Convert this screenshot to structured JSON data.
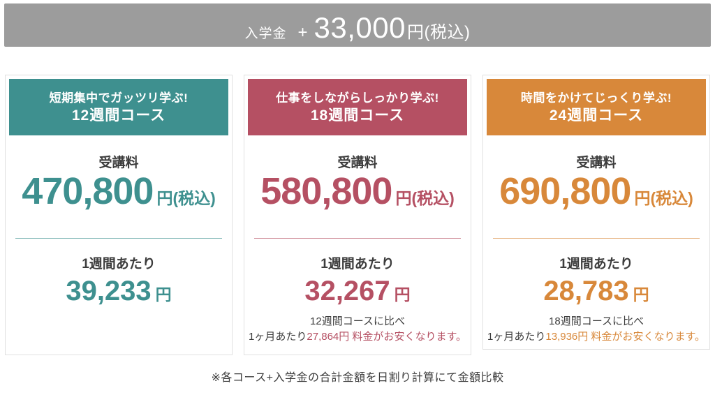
{
  "banner": {
    "label": "入学金",
    "plus": "+",
    "amount": "33,000",
    "unit": "円(税込)"
  },
  "cards": [
    {
      "theme_color": "#3e908f",
      "tagline": "短期集中でガッツリ学ぶ!",
      "course_name": "12週間コース",
      "tuition_label": "受講料",
      "tuition_amount": "470,800",
      "tuition_unit": "円(税込)",
      "per_week_label": "1週間あたり",
      "per_week_amount": "39,233",
      "per_week_unit": "円",
      "compare_baseline": "",
      "compare_prefix": "",
      "compare_highlight": ""
    },
    {
      "theme_color": "#b55063",
      "tagline": "仕事をしながらしっかり学ぶ!",
      "course_name": "18週間コース",
      "tuition_label": "受講料",
      "tuition_amount": "580,800",
      "tuition_unit": "円(税込)",
      "per_week_label": "1週間あたり",
      "per_week_amount": "32,267",
      "per_week_unit": "円",
      "compare_baseline": "12週間コースに比べ",
      "compare_prefix": "1ヶ月あたり",
      "compare_highlight": "27,864円 料金がお安くなります。"
    },
    {
      "theme_color": "#d8883a",
      "tagline": "時間をかけてじっくり学ぶ!",
      "course_name": "24週間コース",
      "tuition_label": "受講料",
      "tuition_amount": "690,800",
      "tuition_unit": "円(税込)",
      "per_week_label": "1週間あたり",
      "per_week_amount": "28,783",
      "per_week_unit": "円",
      "compare_baseline": "18週間コースに比べ",
      "compare_prefix": "1ヶ月あたり",
      "compare_highlight": "13,936円 料金がお安くなります。"
    }
  ],
  "footnote": "※各コース+入学金の合計金額を日割り計算にて金額比較",
  "colors": {
    "banner_bg": "#9c9c9c",
    "banner_text": "#ffffff",
    "card_border": "#e0e0e0",
    "card_bg": "#ffffff",
    "page_bg": "#ffffff",
    "text_dark": "#3c3c3c"
  }
}
